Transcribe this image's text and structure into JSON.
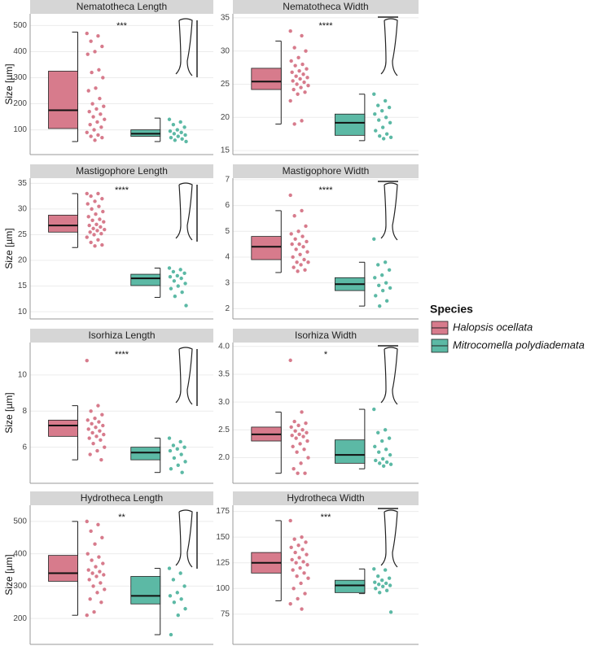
{
  "y_label": "Size [µm]",
  "legend": {
    "title": "Species",
    "entries": [
      {
        "name": "Halopsis ocellata",
        "color": "#d77b8c"
      },
      {
        "name": "Mitrocomella polydiademata",
        "color": "#5cb9a5"
      }
    ]
  },
  "chart_data": [
    {
      "type": "box",
      "title": "Nematotheca Length",
      "annotation": "***",
      "ylim": [
        5,
        545
      ],
      "yticks": [
        100,
        200,
        300,
        400,
        500
      ],
      "series": [
        {
          "min": 55,
          "q1": 105,
          "median": 175,
          "q3": 325,
          "max": 475,
          "values": [
            470,
            460,
            440,
            420,
            400,
            390,
            330,
            320,
            300,
            260,
            250,
            220,
            200,
            190,
            180,
            170,
            160,
            150,
            140,
            130,
            120,
            110,
            100,
            90,
            80,
            75,
            70,
            60
          ]
        },
        {
          "min": 55,
          "q1": 75,
          "median": 85,
          "q3": 100,
          "max": 145,
          "values": [
            140,
            130,
            120,
            110,
            100,
            95,
            90,
            85,
            80,
            75,
            70,
            65,
            60,
            55
          ]
        }
      ]
    },
    {
      "type": "box",
      "title": "Nematotheca Width",
      "annotation": "****",
      "ylim": [
        14.4,
        35.6
      ],
      "yticks": [
        15,
        20,
        25,
        30,
        35
      ],
      "series": [
        {
          "min": 19,
          "q1": 24.2,
          "median": 25.4,
          "q3": 27.4,
          "max": 31.5,
          "values": [
            33,
            32.3,
            30.5,
            30,
            29,
            28.5,
            28,
            27.8,
            27.3,
            27,
            26.8,
            26.5,
            26.2,
            26,
            25.8,
            25.5,
            25.3,
            25,
            24.8,
            24.5,
            24.2,
            23.8,
            23.5,
            22.5,
            19.5,
            19
          ]
        },
        {
          "min": 16.5,
          "q1": 17.3,
          "median": 19.2,
          "q3": 20.5,
          "max": 23.5,
          "values": [
            23.5,
            22.5,
            21.8,
            21.5,
            21,
            20.5,
            20,
            19.6,
            19.2,
            18.5,
            18,
            17.5,
            17.2,
            17,
            16.8
          ]
        }
      ]
    },
    {
      "type": "box",
      "title": "Mastigophore Length",
      "annotation": "****",
      "ylim": [
        8.6,
        36
      ],
      "yticks": [
        10,
        15,
        20,
        25,
        30,
        35
      ],
      "series": [
        {
          "min": 22.5,
          "q1": 25.5,
          "median": 26.8,
          "q3": 28.8,
          "max": 33,
          "values": [
            33,
            33,
            32.5,
            32,
            31.5,
            31,
            30.5,
            30,
            29.5,
            29,
            28.5,
            28,
            27.8,
            27.5,
            27,
            26.8,
            26.5,
            26.2,
            26,
            25.8,
            25.5,
            25.2,
            25,
            24.5,
            24,
            23.5,
            23,
            22.8
          ]
        },
        {
          "min": 12.8,
          "q1": 15.1,
          "median": 16.5,
          "q3": 17.3,
          "max": 18.5,
          "values": [
            18.5,
            18.2,
            17.8,
            17.5,
            17,
            16.8,
            16.5,
            16,
            15.5,
            15,
            14.5,
            13.8,
            13,
            11.2
          ]
        }
      ]
    },
    {
      "type": "box",
      "title": "Mastigophore Width",
      "annotation": "****",
      "ylim": [
        1.6,
        7.06
      ],
      "yticks": [
        2,
        3,
        4,
        5,
        6,
        7
      ],
      "series": [
        {
          "min": 3.4,
          "q1": 3.9,
          "median": 4.4,
          "q3": 4.8,
          "max": 5.8,
          "values": [
            6.4,
            5.8,
            5.6,
            5.2,
            5.0,
            4.9,
            4.8,
            4.7,
            4.6,
            4.5,
            4.5,
            4.4,
            4.3,
            4.2,
            4.1,
            4.0,
            3.9,
            3.8,
            3.8,
            3.7,
            3.6,
            3.5,
            3.45
          ]
        },
        {
          "min": 2.1,
          "q1": 2.7,
          "median": 2.95,
          "q3": 3.2,
          "max": 3.8,
          "values": [
            4.7,
            3.8,
            3.7,
            3.5,
            3.3,
            3.2,
            3.0,
            2.9,
            2.8,
            2.7,
            2.5,
            2.3,
            2.1
          ]
        }
      ]
    },
    {
      "type": "box",
      "title": "Isorhiza Length",
      "annotation": "****",
      "ylim": [
        4,
        11.8
      ],
      "yticks": [
        6,
        8,
        10
      ],
      "series": [
        {
          "min": 5.3,
          "q1": 6.6,
          "median": 7.2,
          "q3": 7.5,
          "max": 8.3,
          "values": [
            10.8,
            8.3,
            8.0,
            7.8,
            7.6,
            7.5,
            7.4,
            7.3,
            7.2,
            7.1,
            7.0,
            6.9,
            6.8,
            6.7,
            6.6,
            6.5,
            6.4,
            6.2,
            6.0,
            5.8,
            5.6,
            5.3
          ]
        },
        {
          "min": 4.6,
          "q1": 5.3,
          "median": 5.7,
          "q3": 6.0,
          "max": 6.5,
          "values": [
            6.5,
            6.3,
            6.1,
            6.0,
            5.9,
            5.8,
            5.6,
            5.4,
            5.2,
            5.0,
            4.8,
            4.6
          ]
        }
      ]
    },
    {
      "type": "box",
      "title": "Isorhiza Width",
      "annotation": "*",
      "ylim": [
        1.54,
        4.07
      ],
      "yticks": [
        {
          "value": 2,
          "label": "2.0"
        },
        2.5,
        {
          "value": 3,
          "label": "3.0"
        },
        3.5,
        {
          "value": 4,
          "label": "4.0"
        }
      ],
      "series": [
        {
          "min": 1.72,
          "q1": 2.3,
          "median": 2.42,
          "q3": 2.55,
          "max": 2.82,
          "values": [
            3.75,
            2.82,
            2.65,
            2.62,
            2.58,
            2.55,
            2.5,
            2.48,
            2.45,
            2.42,
            2.4,
            2.38,
            2.35,
            2.3,
            2.25,
            2.2,
            2.15,
            2.1,
            2.0,
            1.9,
            1.8,
            1.72,
            1.72
          ]
        },
        {
          "min": 1.8,
          "q1": 1.9,
          "median": 2.05,
          "q3": 2.32,
          "max": 2.87,
          "values": [
            2.87,
            2.5,
            2.45,
            2.35,
            2.3,
            2.2,
            2.15,
            2.1,
            2.05,
            1.98,
            1.95,
            1.92,
            1.9,
            1.88,
            1.85
          ]
        }
      ]
    },
    {
      "type": "box",
      "title": "Hydrotheca Length",
      "annotation": "**",
      "ylim": [
        120,
        550
      ],
      "yticks": [
        200,
        300,
        400,
        500
      ],
      "series": [
        {
          "min": 210,
          "q1": 315,
          "median": 340,
          "q3": 395,
          "max": 500,
          "values": [
            500,
            490,
            470,
            450,
            430,
            400,
            390,
            380,
            370,
            360,
            350,
            345,
            340,
            335,
            330,
            320,
            310,
            300,
            290,
            280,
            260,
            250,
            220,
            210
          ]
        },
        {
          "min": 150,
          "q1": 245,
          "median": 270,
          "q3": 330,
          "max": 355,
          "values": [
            355,
            340,
            320,
            300,
            280,
            270,
            260,
            250,
            230,
            210,
            150
          ]
        }
      ]
    },
    {
      "type": "box",
      "title": "Hydrotheca Width",
      "annotation": "***",
      "ylim": [
        45.6,
        181
      ],
      "yticks": [
        75,
        100,
        125,
        150,
        175
      ],
      "series": [
        {
          "min": 88,
          "q1": 115,
          "median": 125,
          "q3": 135,
          "max": 166,
          "values": [
            166,
            150,
            148,
            145,
            142,
            140,
            138,
            135,
            133,
            130,
            128,
            126,
            125,
            123,
            120,
            118,
            115,
            112,
            110,
            105,
            100,
            95,
            90,
            85,
            80
          ]
        },
        {
          "min": 95,
          "q1": 96,
          "median": 103,
          "q3": 108,
          "max": 119,
          "values": [
            119,
            118,
            112,
            110,
            108,
            106,
            105,
            104,
            103,
            102,
            100,
            98,
            96,
            77
          ]
        }
      ]
    }
  ]
}
